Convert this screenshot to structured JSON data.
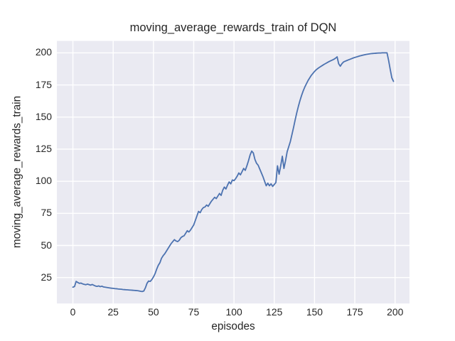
{
  "chart_data": {
    "type": "line",
    "title": "moving_average_rewards_train of DQN",
    "xlabel": "episodes",
    "ylabel": "moving_average_rewards_train",
    "grid": true,
    "legend_visible": false,
    "xlim": [
      -9.95,
      208.95
    ],
    "ylim": [
      4.8,
      209.3
    ],
    "xticks": [
      0,
      25,
      50,
      75,
      100,
      125,
      150,
      175,
      200
    ],
    "yticks": [
      25,
      50,
      75,
      100,
      125,
      150,
      175,
      200
    ],
    "style": {
      "figure_bg": "#ffffff",
      "axes_bg": "#eaeaf2",
      "grid_color": "#ffffff",
      "grid_width": 1.4,
      "line_color": "#4c72b0",
      "line_width": 1.8,
      "text_color": "#262626"
    },
    "series": [
      {
        "name": "moving_average_rewards_train",
        "x_start": 0,
        "x_step": 1,
        "values": [
          17.5,
          18.0,
          22.0,
          21.2,
          20.5,
          20.7,
          20.1,
          19.7,
          19.4,
          19.9,
          19.5,
          19.1,
          19.6,
          19.0,
          18.4,
          18.1,
          18.5,
          17.9,
          18.3,
          17.7,
          17.5,
          17.3,
          17.1,
          16.9,
          16.7,
          16.6,
          16.4,
          16.3,
          16.1,
          16.0,
          15.9,
          15.7,
          15.6,
          15.5,
          15.4,
          15.3,
          15.2,
          15.1,
          15.0,
          14.9,
          14.8,
          14.6,
          14.3,
          14.1,
          14.5,
          17.0,
          20.5,
          22.3,
          22.0,
          23.4,
          25.5,
          28.0,
          31.5,
          34.5,
          36.5,
          40.0,
          42.0,
          43.5,
          45.5,
          47.5,
          49.5,
          51.5,
          53.0,
          54.5,
          53.5,
          53.0,
          54.0,
          56.0,
          57.0,
          57.5,
          59.5,
          61.5,
          60.5,
          62.0,
          64.0,
          66.0,
          69.5,
          73.0,
          76.5,
          75.5,
          78.0,
          79.5,
          80.0,
          81.5,
          80.5,
          82.5,
          84.5,
          86.0,
          87.5,
          86.5,
          88.5,
          90.5,
          89.0,
          93.0,
          95.5,
          94.0,
          97.0,
          99.5,
          98.0,
          101.0,
          100.5,
          102.0,
          104.0,
          106.5,
          105.0,
          107.5,
          110.0,
          108.5,
          112.0,
          116.0,
          120.5,
          123.5,
          122.0,
          117.0,
          114.0,
          112.5,
          109.5,
          106.5,
          103.5,
          100.0,
          96.5,
          98.5,
          96.5,
          98.0,
          96.0,
          97.5,
          99.0,
          112.0,
          105.5,
          112.0,
          119.5,
          110.0,
          116.0,
          123.0,
          127.0,
          131.0,
          136.5,
          142.0,
          148.0,
          153.5,
          158.5,
          163.0,
          167.0,
          170.5,
          173.5,
          176.0,
          178.5,
          180.5,
          182.5,
          184.0,
          185.5,
          186.8,
          187.8,
          188.7,
          189.5,
          190.3,
          191.1,
          191.8,
          192.5,
          193.2,
          193.8,
          194.4,
          195.0,
          195.8,
          196.9,
          191.5,
          189.6,
          191.6,
          192.9,
          193.5,
          194.0,
          194.5,
          195.0,
          195.5,
          196.0,
          196.4,
          196.8,
          197.2,
          197.6,
          197.9,
          198.2,
          198.5,
          198.8,
          199.0,
          199.2,
          199.4,
          199.5,
          199.6,
          199.7,
          199.8,
          199.9,
          199.9,
          200.0,
          200.0,
          200.0,
          200.0,
          194.0,
          187.0,
          180.5,
          177.8
        ]
      }
    ]
  }
}
